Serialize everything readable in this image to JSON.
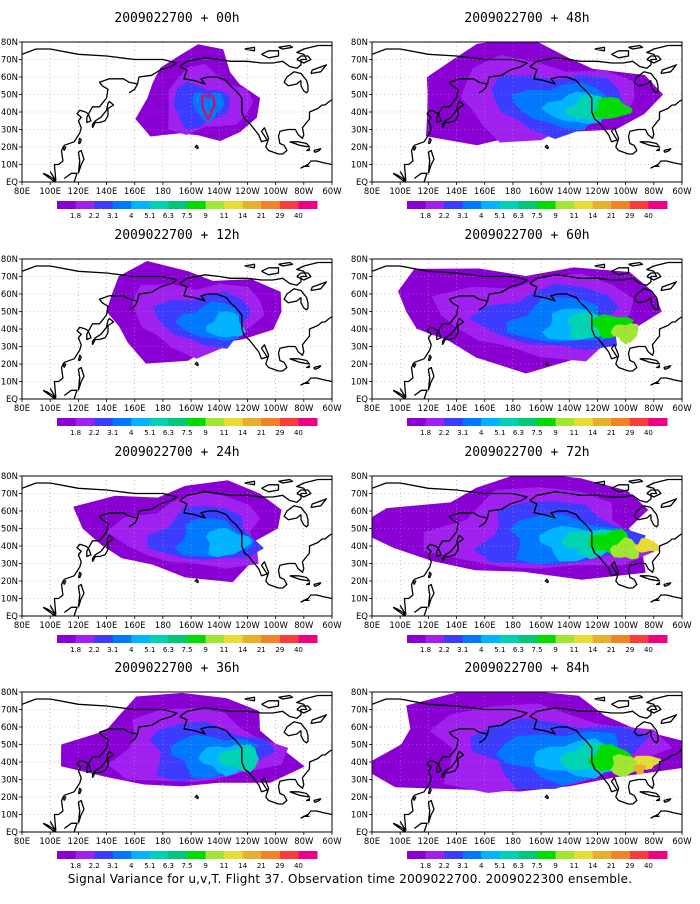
{
  "footer_caption": "Signal Variance for u,v,T. Flight 37. Observation time 2009022700. 2009022300 ensemble.",
  "panels": [
    {
      "title": "2009022700 + 00h",
      "stage": 0
    },
    {
      "title": "2009022700 + 48h",
      "stage": 4
    },
    {
      "title": "2009022700 + 12h",
      "stage": 1
    },
    {
      "title": "2009022700 + 60h",
      "stage": 5
    },
    {
      "title": "2009022700 + 24h",
      "stage": 2
    },
    {
      "title": "2009022700 + 72h",
      "stage": 6
    },
    {
      "title": "2009022700 + 36h",
      "stage": 3
    },
    {
      "title": "2009022700 + 84h",
      "stage": 7
    }
  ],
  "lon_ticks": [
    "80E",
    "100E",
    "120E",
    "140E",
    "160E",
    "180",
    "160W",
    "140W",
    "120W",
    "100W",
    "80W",
    "60W"
  ],
  "lat_ticks": [
    "80N",
    "70N",
    "60N",
    "50N",
    "40N",
    "30N",
    "20N",
    "10N",
    "EQ"
  ],
  "colorbar": {
    "labels": [
      "1.8",
      "2.2",
      "3.1",
      "4",
      "5.1",
      "6.3",
      "7.5",
      "9",
      "11",
      "14",
      "21",
      "29",
      "40"
    ],
    "colors": [
      "#8a00d4",
      "#a020f0",
      "#3c3cff",
      "#0078ff",
      "#00b4ff",
      "#00d2b4",
      "#00c878",
      "#00dc00",
      "#a0e632",
      "#e6dc32",
      "#e6af2d",
      "#f08228",
      "#fa3c3c",
      "#f00082"
    ]
  }
}
